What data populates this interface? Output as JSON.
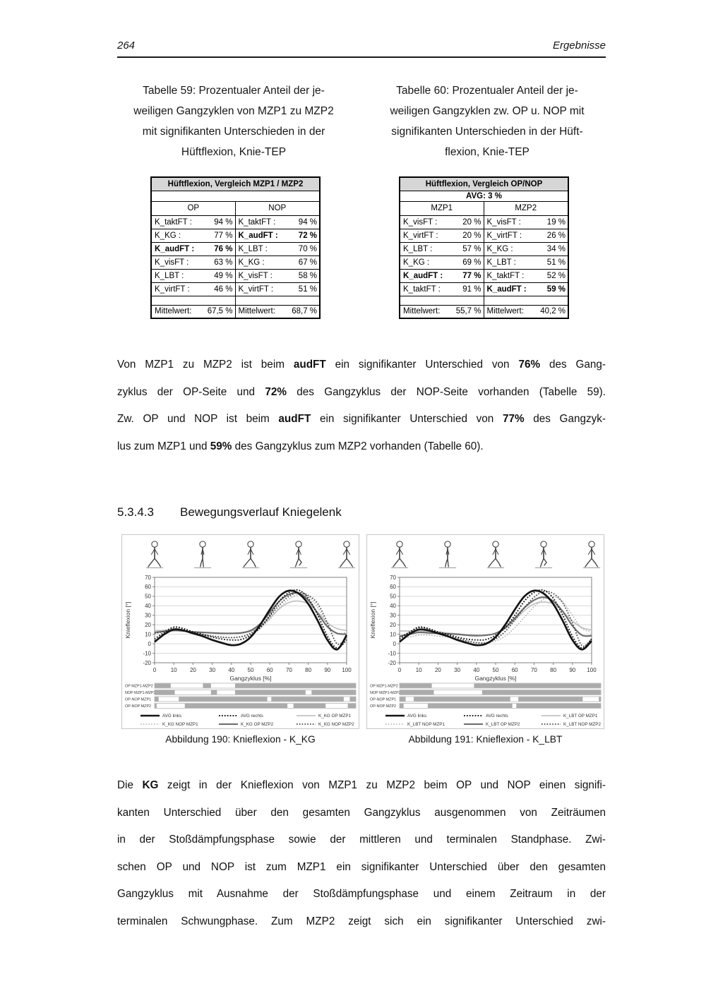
{
  "page": {
    "number": "264",
    "header_right": "Ergebnisse"
  },
  "captions": {
    "table59": [
      "Tabelle 59: Prozentualer Anteil der je-",
      "weiligen Gangzyklen von MZP1 zu MZP2",
      "mit signifikanten Unterschieden in der",
      "Hüftflexion, Knie-TEP"
    ],
    "table60": [
      "Tabelle 60: Prozentualer Anteil der je-",
      "weiligen Gangzyklen zw. OP u. NOP mit",
      "signifikanten Unterschieden in der Hüft-",
      "flexion, Knie-TEP"
    ]
  },
  "tables": [
    {
      "title": "Hüftflexion, Vergleich MZP1 / MZP2",
      "subheader": "",
      "col_headers": [
        "OP",
        "NOP"
      ],
      "rows": [
        {
          "c1": {
            "label": "K_taktFT :",
            "value": "94 %"
          },
          "c2": {
            "label": "K_taktFT :",
            "value": "94 %"
          }
        },
        {
          "c1": {
            "label": "K_KG :",
            "value": "77 %"
          },
          "c2": {
            "label": "K_audFT :",
            "value": "72 %",
            "bold": true
          }
        },
        {
          "c1": {
            "label": "K_audFT :",
            "value": "76 %",
            "bold": true
          },
          "c2": {
            "label": "K_LBT :",
            "value": "70 %"
          }
        },
        {
          "c1": {
            "label": "K_visFT :",
            "value": "63 %"
          },
          "c2": {
            "label": "K_KG :",
            "value": "67 %"
          }
        },
        {
          "c1": {
            "label": "K_LBT :",
            "value": "49 %"
          },
          "c2": {
            "label": "K_visFT :",
            "value": "58 %"
          }
        },
        {
          "c1": {
            "label": "K_virtFT :",
            "value": "46 %"
          },
          "c2": {
            "label": "K_virtFT :",
            "value": "51 %"
          }
        }
      ],
      "mean": {
        "label": "Mittelwert:",
        "v1": "67,5 %",
        "v2": "68,7 %"
      }
    },
    {
      "title": "Hüftflexion, Vergleich OP/NOP",
      "subheader": "AVG: 3 %",
      "col_headers": [
        "MZP1",
        "MZP2"
      ],
      "rows": [
        {
          "c1": {
            "label": "K_visFT :",
            "value": "20 %"
          },
          "c2": {
            "label": "K_visFT :",
            "value": "19 %"
          }
        },
        {
          "c1": {
            "label": "K_virtFT :",
            "value": "20 %"
          },
          "c2": {
            "label": "K_virtFT :",
            "value": "26 %"
          }
        },
        {
          "c1": {
            "label": "K_LBT :",
            "value": "57 %"
          },
          "c2": {
            "label": "K_KG :",
            "value": "34 %"
          }
        },
        {
          "c1": {
            "label": "K_KG :",
            "value": "69 %"
          },
          "c2": {
            "label": "K_LBT :",
            "value": "51 %"
          }
        },
        {
          "c1": {
            "label": "K_audFT :",
            "value": "77 %",
            "bold": true
          },
          "c2": {
            "label": "K_taktFT :",
            "value": "52 %"
          }
        },
        {
          "c1": {
            "label": "K_taktFT :",
            "value": "91 %"
          },
          "c2": {
            "label": "K_audFT :",
            "value": "59 %",
            "bold": true
          }
        }
      ],
      "mean": {
        "label": "Mittelwert:",
        "v1": "55,7 %",
        "v2": "40,2 %"
      }
    }
  ],
  "paragraph1": [
    {
      "j": true,
      "s": [
        {
          "t": "Von MZP1 zu MZP2 ist beim "
        },
        {
          "t": "audFT",
          "b": true
        },
        {
          "t": " ein signifikanter Unterschied von "
        },
        {
          "t": "76%",
          "b": true
        },
        {
          "t": " des Gang-"
        }
      ]
    },
    {
      "j": true,
      "s": [
        {
          "t": "zyklus der OP-Seite und "
        },
        {
          "t": "72%",
          "b": true
        },
        {
          "t": " des Gangzyklus der NOP-Seite vorhanden (Tabelle 59)."
        }
      ]
    },
    {
      "j": true,
      "s": [
        {
          "t": "Zw. OP und NOP ist beim "
        },
        {
          "t": "audFT",
          "b": true
        },
        {
          "t": " ein signifikanter Unterschied von "
        },
        {
          "t": "77%",
          "b": true
        },
        {
          "t": " des Gangzyk-"
        }
      ]
    },
    {
      "j": false,
      "s": [
        {
          "t": "lus zum MZP1 und "
        },
        {
          "t": "59%",
          "b": true
        },
        {
          "t": " des Gangzyklus zum MZP2 vorhanden (Tabelle 60)."
        }
      ]
    }
  ],
  "heading": {
    "number": "5.3.4.3",
    "title": "Bewegungsverlauf Kniegelenk"
  },
  "figure_captions": [
    "Abbildung 190: Knieflexion - K_KG",
    "Abbildung 191: Knieflexion - K_LBT"
  ],
  "paragraph2": [
    {
      "j": true,
      "s": [
        {
          "t": "Die "
        },
        {
          "t": "KG",
          "b": true
        },
        {
          "t": " zeigt in der Knieflexion von MZP1 zu MZP2 beim OP und NOP einen signifi-"
        }
      ]
    },
    {
      "j": true,
      "s": [
        {
          "t": "kanten Unterschied über den gesamten Gangzyklus ausgenommen von Zeiträumen"
        }
      ]
    },
    {
      "j": true,
      "s": [
        {
          "t": "in der Stoßdämpfungsphase sowie der mittleren und terminalen Standphase. Zwi-"
        }
      ]
    },
    {
      "j": true,
      "s": [
        {
          "t": "schen OP und NOP ist zum MZP1 ein signifikanter Unterschied über den gesamten"
        }
      ]
    },
    {
      "j": true,
      "s": [
        {
          "t": "Gangzyklus mit Ausnahme der Stoßdämpfungsphase und einem Zeitraum in der"
        }
      ]
    },
    {
      "j": true,
      "s": [
        {
          "t": "terminalen Schwungphase. Zum MZP2 zeigt sich ein signifikanter Unterschied zwi-"
        }
      ]
    }
  ],
  "chart_data": [
    {
      "type": "line",
      "title": "",
      "xlabel": "Gangzyklus [%]",
      "ylabel": "Knieflexion [°]",
      "xlim": [
        0,
        100
      ],
      "ylim": [
        -20,
        70
      ],
      "xticks": [
        0,
        10,
        20,
        30,
        40,
        50,
        60,
        70,
        80,
        90,
        100
      ],
      "yticks": [
        70,
        60,
        50,
        40,
        30,
        20,
        10,
        0,
        -10,
        -20
      ],
      "grid": true,
      "legend_position": "bottom",
      "x": [
        0,
        5,
        10,
        15,
        20,
        25,
        30,
        35,
        40,
        45,
        50,
        55,
        60,
        65,
        70,
        75,
        80,
        85,
        90,
        95,
        100
      ],
      "series": [
        {
          "name": "AVG links",
          "color": "#141414",
          "width": 2.7,
          "dash": "",
          "z": 6,
          "values": [
            2,
            10,
            15,
            14,
            11,
            8,
            4,
            1,
            -1.5,
            0,
            7,
            20,
            36,
            50,
            56,
            53,
            42,
            24,
            4,
            -6,
            9
          ]
        },
        {
          "name": "AVG rechts",
          "color": "#1a1a1a",
          "width": 1.9,
          "dash": "1.8 2.1",
          "z": 5,
          "values": [
            5,
            12,
            17.5,
            16,
            12.5,
            10,
            7,
            5,
            4,
            4.5,
            9,
            17,
            30,
            45,
            54,
            56.5,
            48,
            30,
            8,
            -4.5,
            4
          ]
        },
        {
          "name": "K_KG OP MZP1",
          "color": "#c2c2c2",
          "width": 1.7,
          "dash": "",
          "z": 1,
          "values": [
            14,
            14,
            14.5,
            13.5,
            12.5,
            12,
            11.5,
            11,
            11,
            11.5,
            13,
            18,
            27,
            37,
            43.5,
            45,
            42,
            33,
            22,
            16,
            14
          ]
        },
        {
          "name": "K_KG NOP MZP1",
          "color": "#aeaeae",
          "width": 1.5,
          "dash": "1.6 2.2",
          "z": 2,
          "values": [
            13,
            14.5,
            16,
            14.5,
            12,
            10,
            8.5,
            7,
            6.5,
            7,
            10,
            16,
            26,
            38,
            47,
            52,
            50,
            38,
            20,
            11,
            12
          ]
        },
        {
          "name": "K_KG OP MZP2",
          "color": "#6b6b6b",
          "width": 2.1,
          "dash": "",
          "z": 3,
          "values": [
            12,
            13,
            14,
            13.5,
            12.5,
            12,
            11.5,
            11,
            11,
            11.5,
            14,
            21,
            33,
            45,
            52,
            53.5,
            46,
            32,
            18,
            11,
            10
          ]
        },
        {
          "name": "K_KG NOP MZP2",
          "color": "#444444",
          "width": 1.8,
          "dash": "1.6 2.2",
          "z": 4,
          "values": [
            11,
            13,
            16,
            14.5,
            12,
            9.5,
            8,
            7,
            6.5,
            7.5,
            11,
            18,
            29,
            41,
            50,
            54,
            51,
            42,
            22,
            0,
            6
          ]
        }
      ],
      "significance_rows": [
        {
          "label": "OP MZP1-MZP2",
          "segments": [
            [
              0,
              8
            ],
            [
              24,
              28
            ],
            [
              40,
              100
            ]
          ]
        },
        {
          "label": "NOP MZP1-MZP2",
          "segments": [
            [
              0,
              10
            ],
            [
              28,
              31
            ],
            [
              40,
              75
            ],
            [
              78,
              100
            ]
          ]
        },
        {
          "label": "OP-NOP MZP1",
          "segments": [
            [
              0,
              2
            ],
            [
              12,
              56
            ],
            [
              58,
              94
            ],
            [
              97,
              100
            ]
          ]
        },
        {
          "label": "OP-NOP MZP2",
          "segments": [
            [
              0,
              1
            ],
            [
              15,
              66
            ],
            [
              69,
              85
            ],
            [
              96,
              100
            ]
          ]
        }
      ]
    },
    {
      "type": "line",
      "title": "",
      "xlabel": "Gangzyklus [%]",
      "ylabel": "Knieflexion [°]",
      "xlim": [
        0,
        100
      ],
      "ylim": [
        -20,
        70
      ],
      "xticks": [
        0,
        10,
        20,
        30,
        40,
        50,
        60,
        70,
        80,
        90,
        100
      ],
      "yticks": [
        70,
        60,
        50,
        40,
        30,
        20,
        10,
        0,
        -10,
        -20
      ],
      "grid": true,
      "legend_position": "bottom",
      "x": [
        0,
        5,
        10,
        15,
        20,
        25,
        30,
        35,
        40,
        45,
        50,
        55,
        60,
        65,
        70,
        75,
        80,
        85,
        90,
        95,
        100
      ],
      "series": [
        {
          "name": "AVG links",
          "color": "#141414",
          "width": 2.7,
          "dash": "",
          "z": 6,
          "values": [
            2,
            10,
            15,
            14,
            11,
            8,
            4,
            1,
            -1.5,
            0,
            7,
            20,
            36,
            50,
            56,
            53,
            42,
            24,
            4,
            -6,
            3
          ]
        },
        {
          "name": "AVG rechts",
          "color": "#1a1a1a",
          "width": 1.9,
          "dash": "1.8 2.1",
          "z": 5,
          "values": [
            5,
            12,
            17.5,
            16,
            12.5,
            10,
            7,
            5,
            4,
            4.5,
            9,
            17,
            30,
            45,
            54,
            56.5,
            48,
            30,
            8,
            -4.5,
            5
          ]
        },
        {
          "name": "K_LBT OP MZP1",
          "color": "#c2c2c2",
          "width": 1.7,
          "dash": "",
          "z": 1,
          "values": [
            13.5,
            13.5,
            13.5,
            13,
            12.5,
            11.5,
            10.5,
            9.5,
            9,
            9,
            11,
            16,
            25,
            35,
            42,
            44,
            42,
            34,
            24,
            17,
            14.5
          ]
        },
        {
          "name": "K_LBT NOP MZP1",
          "color": "#aeaeae",
          "width": 1.5,
          "dash": "1.6 2.2",
          "z": 2,
          "values": [
            5,
            7,
            9,
            9,
            8,
            7,
            5,
            3,
            1.5,
            1,
            3,
            8,
            17,
            28,
            39,
            47,
            50,
            44,
            30,
            16,
            13
          ]
        },
        {
          "name": "K_LBT OP MZP2",
          "color": "#6b6b6b",
          "width": 2.1,
          "dash": "",
          "z": 3,
          "values": [
            8,
            10,
            12,
            11.5,
            11,
            10.5,
            10,
            9,
            8.5,
            9,
            11,
            17,
            27,
            38,
            46,
            49,
            45,
            34,
            19,
            9,
            8.5
          ]
        },
        {
          "name": "K_LBT NOP MZP2",
          "color": "#444444",
          "width": 1.8,
          "dash": "1.6 2.2",
          "z": 4,
          "values": [
            7,
            12,
            17,
            15.5,
            12,
            9,
            6,
            3,
            1,
            1,
            5,
            13,
            25,
            38,
            49,
            55,
            53,
            43,
            22,
            -2,
            5
          ]
        }
      ],
      "significance_rows": [
        {
          "label": "OP MZP1-MZP2",
          "segments": [
            [
              0,
              16
            ],
            [
              37,
              100
            ]
          ]
        },
        {
          "label": "NOP MZP1-MZP2",
          "segments": [
            [
              0,
              17
            ],
            [
              41,
              100
            ]
          ]
        },
        {
          "label": "OP-NOP MZP1",
          "segments": [
            [
              0,
              3
            ],
            [
              7,
              55
            ],
            [
              59,
              91
            ],
            [
              99,
              100
            ]
          ]
        },
        {
          "label": "OP-NOP MZP2",
          "segments": [
            [
              0,
              2
            ],
            [
              14,
              56
            ],
            [
              58,
              100
            ]
          ]
        }
      ]
    }
  ],
  "colors": {
    "table_header_bg": "#d6d6d6",
    "grid": "#d9d9d9",
    "plot_border": "#7f7f7f",
    "bar_fill": "#ababab",
    "bar_border": "#9e9e9e",
    "text": "#161616"
  }
}
